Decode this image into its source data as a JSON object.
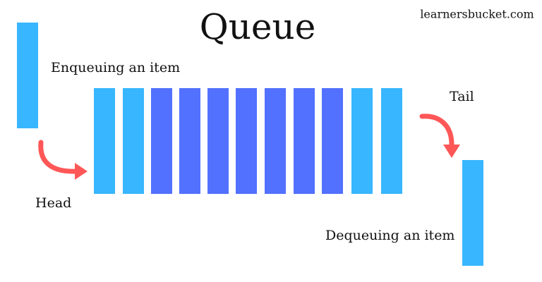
{
  "header": {
    "title": "Queue",
    "watermark": "learnersbucket.com"
  },
  "labels": {
    "enqueue": "Enqueuing an item",
    "head": "Head",
    "tail": "Tail",
    "dequeue": "Dequeuing an item"
  }
}
